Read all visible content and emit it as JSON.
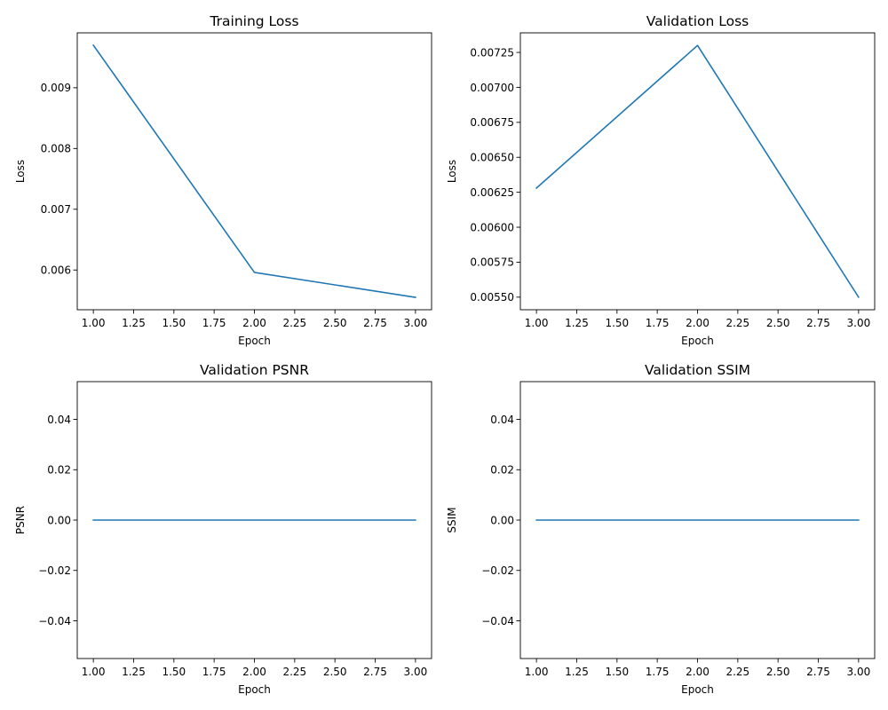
{
  "style": {
    "line_color": "#1f77b4",
    "frame_color": "#000000",
    "background": "#ffffff"
  },
  "chart_data": [
    {
      "type": "line",
      "title": "Training Loss",
      "xlabel": "Epoch",
      "ylabel": "Loss",
      "x": [
        1,
        2,
        3
      ],
      "series": [
        {
          "values": [
            0.0097,
            0.00596,
            0.00555
          ]
        }
      ],
      "xlim": [
        0.9,
        3.1
      ],
      "ylim": [
        0.005346,
        0.009904
      ],
      "xticks": [
        1.0,
        1.25,
        1.5,
        1.75,
        2.0,
        2.25,
        2.5,
        2.75,
        3.0
      ],
      "xtick_labels": [
        "1.00",
        "1.25",
        "1.50",
        "1.75",
        "2.00",
        "2.25",
        "2.50",
        "2.75",
        "3.00"
      ],
      "yticks": [
        0.006,
        0.007,
        0.008,
        0.009
      ],
      "ytick_labels": [
        "0.006",
        "0.007",
        "0.008",
        "0.009"
      ],
      "grid": false
    },
    {
      "type": "line",
      "title": "Validation Loss",
      "xlabel": "Epoch",
      "ylabel": "Loss",
      "x": [
        1,
        2,
        3
      ],
      "series": [
        {
          "values": [
            0.00628,
            0.0073,
            0.0055
          ]
        }
      ],
      "xlim": [
        0.9,
        3.1
      ],
      "ylim": [
        0.00541,
        0.00739
      ],
      "xticks": [
        1.0,
        1.25,
        1.5,
        1.75,
        2.0,
        2.25,
        2.5,
        2.75,
        3.0
      ],
      "xtick_labels": [
        "1.00",
        "1.25",
        "1.50",
        "1.75",
        "2.00",
        "2.25",
        "2.50",
        "2.75",
        "3.00"
      ],
      "yticks": [
        0.0055,
        0.00575,
        0.006,
        0.00625,
        0.0065,
        0.00675,
        0.007,
        0.00725
      ],
      "ytick_labels": [
        "0.00550",
        "0.00575",
        "0.00600",
        "0.00625",
        "0.00650",
        "0.00675",
        "0.00700",
        "0.00725"
      ],
      "grid": false
    },
    {
      "type": "line",
      "title": "Validation PSNR",
      "xlabel": "Epoch",
      "ylabel": "PSNR",
      "x": [
        1,
        2,
        3
      ],
      "series": [
        {
          "values": [
            0,
            0,
            0
          ]
        }
      ],
      "xlim": [
        0.9,
        3.1
      ],
      "ylim": [
        -0.055,
        0.055
      ],
      "xticks": [
        1.0,
        1.25,
        1.5,
        1.75,
        2.0,
        2.25,
        2.5,
        2.75,
        3.0
      ],
      "xtick_labels": [
        "1.00",
        "1.25",
        "1.50",
        "1.75",
        "2.00",
        "2.25",
        "2.50",
        "2.75",
        "3.00"
      ],
      "yticks": [
        -0.04,
        -0.02,
        0.0,
        0.02,
        0.04
      ],
      "ytick_labels": [
        "−0.04",
        "−0.02",
        "0.00",
        "0.02",
        "0.04"
      ],
      "grid": false
    },
    {
      "type": "line",
      "title": "Validation SSIM",
      "xlabel": "Epoch",
      "ylabel": "SSIM",
      "x": [
        1,
        2,
        3
      ],
      "series": [
        {
          "values": [
            0,
            0,
            0
          ]
        }
      ],
      "xlim": [
        0.9,
        3.1
      ],
      "ylim": [
        -0.055,
        0.055
      ],
      "xticks": [
        1.0,
        1.25,
        1.5,
        1.75,
        2.0,
        2.25,
        2.5,
        2.75,
        3.0
      ],
      "xtick_labels": [
        "1.00",
        "1.25",
        "1.50",
        "1.75",
        "2.00",
        "2.25",
        "2.50",
        "2.75",
        "3.00"
      ],
      "yticks": [
        -0.04,
        -0.02,
        0.0,
        0.02,
        0.04
      ],
      "ytick_labels": [
        "−0.04",
        "−0.02",
        "0.00",
        "0.02",
        "0.04"
      ],
      "grid": false
    }
  ]
}
